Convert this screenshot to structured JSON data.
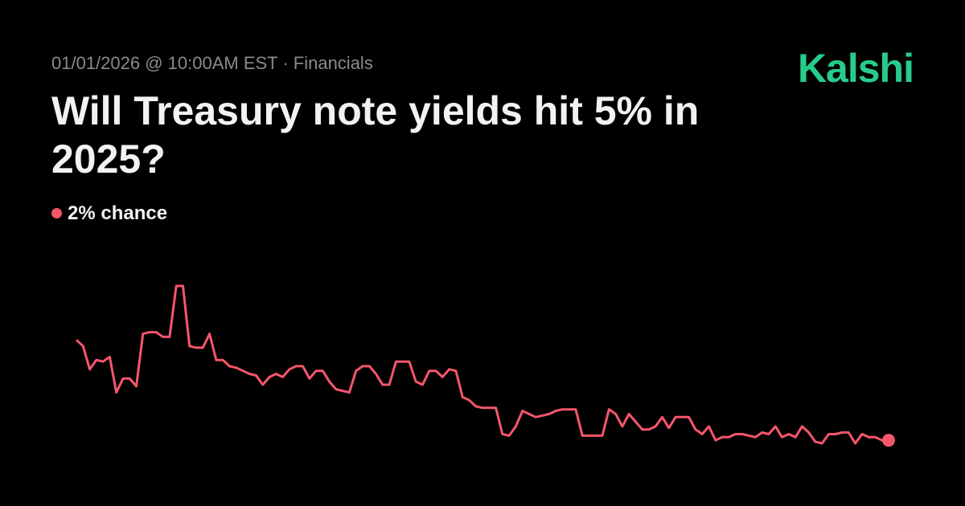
{
  "header": {
    "meta": "01/01/2026 @ 10:00AM EST · Financials",
    "logo": "Kalshi"
  },
  "chart_data": {
    "type": "line",
    "title": "Will Treasury note yields hit 5% in 2025?",
    "annotation": "2% chance",
    "color": "#f5566b",
    "values": [
      8.5,
      8.1,
      6.6,
      7.2,
      7.1,
      7.4,
      5.1,
      6.0,
      6.0,
      5.5,
      8.9,
      9.0,
      9.0,
      8.7,
      8.7,
      12.0,
      12.0,
      8.1,
      8.0,
      8.0,
      8.9,
      7.2,
      7.2,
      6.8,
      6.7,
      6.5,
      6.3,
      6.2,
      5.6,
      6.1,
      6.3,
      6.1,
      6.6,
      6.8,
      6.8,
      6.0,
      6.5,
      6.5,
      5.8,
      5.3,
      5.2,
      5.1,
      6.5,
      6.8,
      6.8,
      6.3,
      5.6,
      5.6,
      7.1,
      7.1,
      7.1,
      5.8,
      5.6,
      6.5,
      6.5,
      6.1,
      6.6,
      6.5,
      4.8,
      4.6,
      4.2,
      4.1,
      4.1,
      4.1,
      2.4,
      2.3,
      2.9,
      3.9,
      3.7,
      3.5,
      3.6,
      3.7,
      3.9,
      4.0,
      4.0,
      4.0,
      2.3,
      2.3,
      2.3,
      2.3,
      4.0,
      3.7,
      2.9,
      3.7,
      3.2,
      2.7,
      2.7,
      2.9,
      3.5,
      2.8,
      3.5,
      3.5,
      3.5,
      2.7,
      2.4,
      2.9,
      2.0,
      2.2,
      2.2,
      2.4,
      2.4,
      2.3,
      2.2,
      2.5,
      2.4,
      2.9,
      2.2,
      2.4,
      2.2,
      2.9,
      2.5,
      1.9,
      1.8,
      2.4,
      2.4,
      2.5,
      2.5,
      1.8,
      2.4,
      2.2,
      2.2,
      2.0,
      2.0
    ]
  }
}
